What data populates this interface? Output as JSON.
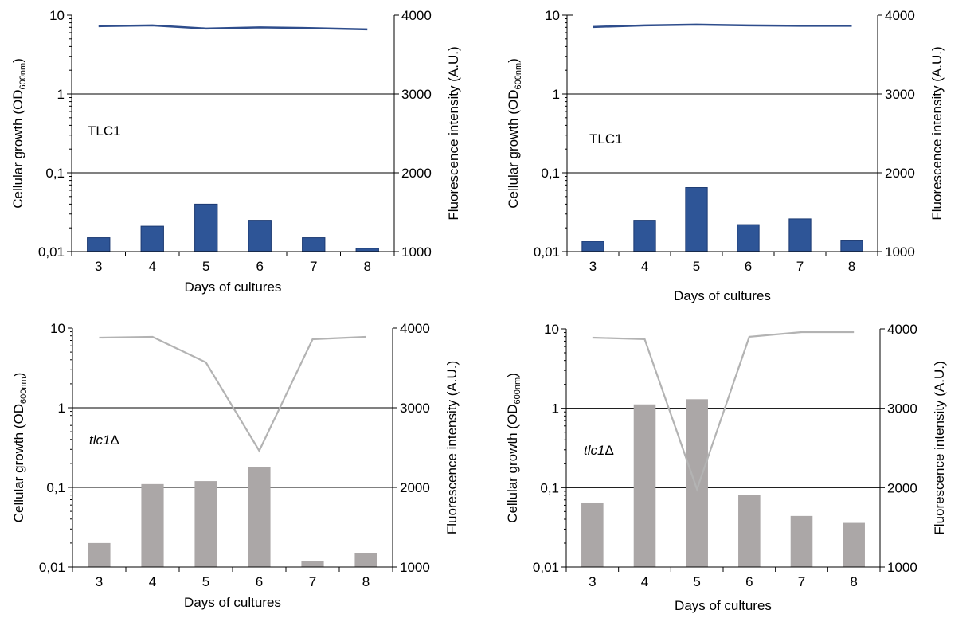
{
  "colors": {
    "blue_bar": "#2e5597",
    "blue_bar_stroke": "#1c3a72",
    "blue_line": "#2e4d8c",
    "gray_bar": "#aba7a7",
    "gray_line": "#b3b3b3",
    "axis": "#000000"
  },
  "chart_data": [
    {
      "type": "bar",
      "label": "TLC1",
      "label_italic": false,
      "categories": [
        "3",
        "4",
        "5",
        "6",
        "7",
        "8"
      ],
      "xlabel": "Days of cultures",
      "ylabel": "Cellular growth  (OD",
      "ylabel_sub": "600nm",
      "ylabel_close": ")",
      "y2label": "Fluorescence intensity (A.U.)",
      "y_scale": "log",
      "ylim": [
        0.01,
        10
      ],
      "y_ticks": [
        "10",
        "1",
        "0,1",
        "0,01"
      ],
      "y2lim": [
        1000,
        4000
      ],
      "y2_ticks": [
        "4000",
        "3000",
        "2000",
        "1000"
      ],
      "series": [
        {
          "type": "bar",
          "axis": "left",
          "values": [
            0.015,
            0.021,
            0.04,
            0.025,
            0.015,
            0.011
          ]
        },
        {
          "type": "line",
          "axis": "right",
          "values": [
            3860,
            3870,
            3830,
            3845,
            3835,
            3820
          ]
        }
      ],
      "grid": true
    },
    {
      "type": "bar",
      "label": "TLC1",
      "label_italic": false,
      "categories": [
        "3",
        "4",
        "5",
        "6",
        "7",
        "8"
      ],
      "xlabel": "Days of cultures",
      "ylabel": "Cellular growth  (OD",
      "ylabel_sub": "600nm",
      "ylabel_close": ")",
      "y2label": "Fluorescence intensity (A.U.)",
      "y_scale": "log",
      "ylim": [
        0.01,
        10
      ],
      "y_ticks": [
        "10",
        "1",
        "0,1",
        "0,01"
      ],
      "y2lim": [
        1000,
        4000
      ],
      "y2_ticks": [
        "4000",
        "3000",
        "2000",
        "1000"
      ],
      "series": [
        {
          "type": "bar",
          "axis": "left",
          "values": [
            0.0135,
            0.025,
            0.065,
            0.022,
            0.026,
            0.014
          ]
        },
        {
          "type": "line",
          "axis": "right",
          "values": [
            3850,
            3870,
            3880,
            3870,
            3865,
            3865
          ]
        }
      ],
      "grid": true
    },
    {
      "type": "bar",
      "label": "tlc1",
      "label_suffix": "Δ",
      "label_italic": true,
      "categories": [
        "3",
        "4",
        "5",
        "6",
        "7",
        "8"
      ],
      "xlabel": "Days of cultures",
      "ylabel": "Cellular growth  (OD",
      "ylabel_sub": "600nm",
      "ylabel_close": ")",
      "y2label": "Fluorescence intensity (A.U.)",
      "y_scale": "log",
      "ylim": [
        0.01,
        10
      ],
      "y_ticks": [
        "10",
        "1",
        "0,1",
        "0,01"
      ],
      "y2lim": [
        1000,
        4000
      ],
      "y2_ticks": [
        "4000",
        "3000",
        "2000",
        "1000"
      ],
      "series": [
        {
          "type": "bar",
          "axis": "left",
          "values": [
            0.02,
            0.11,
            0.12,
            0.18,
            0.012,
            0.015
          ]
        },
        {
          "type": "line",
          "axis": "right",
          "values": [
            3880,
            3890,
            3570,
            2460,
            3860,
            3890
          ]
        }
      ],
      "grid": true
    },
    {
      "type": "bar",
      "label": "tlc1",
      "label_suffix": "Δ",
      "label_italic": true,
      "categories": [
        "3",
        "4",
        "5",
        "6",
        "7",
        "8"
      ],
      "xlabel": "Days of cultures",
      "ylabel": "Cellular growth  (OD",
      "ylabel_sub": "600nm",
      "ylabel_close": ")",
      "y2label": "Fluorescence intensity (A.U.)",
      "y_scale": "log",
      "ylim": [
        0.01,
        10
      ],
      "y_ticks": [
        "10",
        "1",
        "0,1",
        "0,01"
      ],
      "y2lim": [
        1000,
        4000
      ],
      "y2_ticks": [
        "4000",
        "3000",
        "2000",
        "1000"
      ],
      "series": [
        {
          "type": "bar",
          "axis": "left",
          "values": [
            0.065,
            1.12,
            1.3,
            0.08,
            0.044,
            0.036
          ]
        },
        {
          "type": "line",
          "axis": "right",
          "values": [
            3890,
            3870,
            1980,
            3900,
            3960,
            3960
          ]
        }
      ],
      "grid": true
    }
  ]
}
